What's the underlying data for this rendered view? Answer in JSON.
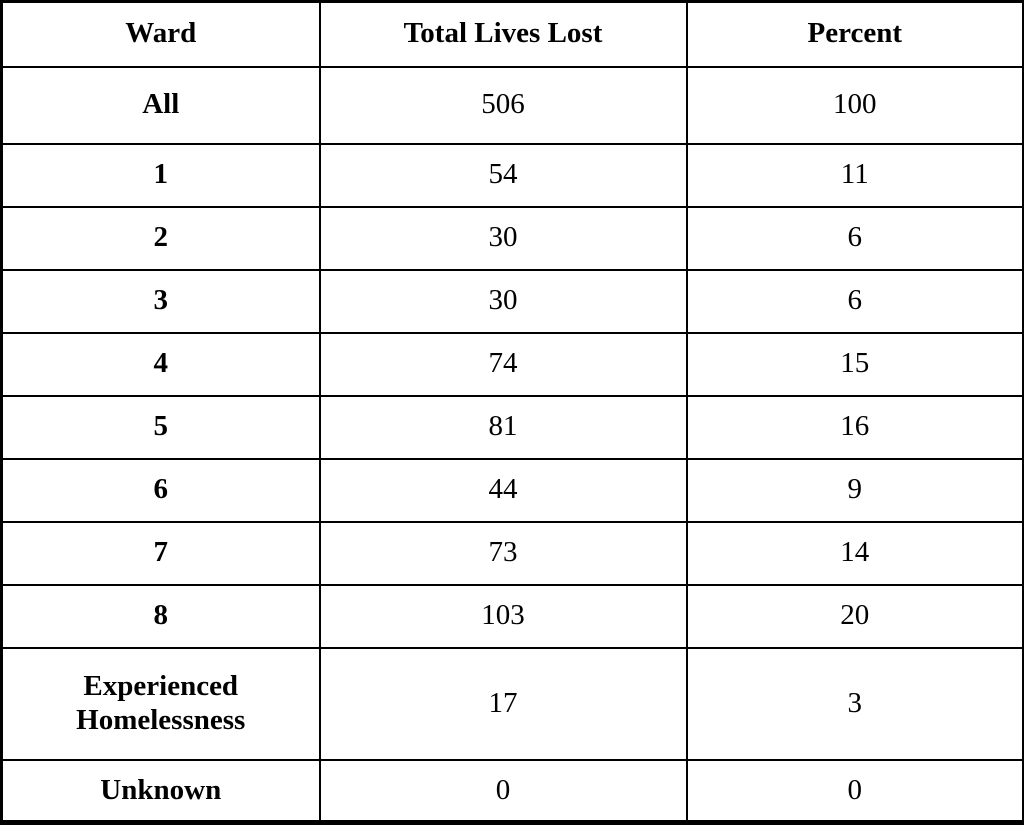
{
  "chart_data": {
    "type": "table",
    "columns": [
      "Ward",
      "Total Lives Lost",
      "Percent"
    ],
    "rows": [
      [
        "All",
        506,
        100
      ],
      [
        "1",
        54,
        11
      ],
      [
        "2",
        30,
        6
      ],
      [
        "3",
        30,
        6
      ],
      [
        "4",
        74,
        15
      ],
      [
        "5",
        81,
        16
      ],
      [
        "6",
        44,
        9
      ],
      [
        "7",
        73,
        14
      ],
      [
        "8",
        103,
        20
      ],
      [
        "Experienced Homelessness",
        17,
        3
      ],
      [
        "Unknown",
        0,
        0
      ]
    ],
    "title": "",
    "layout_hints": {
      "header_bold": true,
      "ward_column_bold": true,
      "text_align": "center",
      "grid": "all-borders-black"
    },
    "colors": {
      "border": "#000000",
      "text": "#000000",
      "background": "#ffffff"
    }
  }
}
